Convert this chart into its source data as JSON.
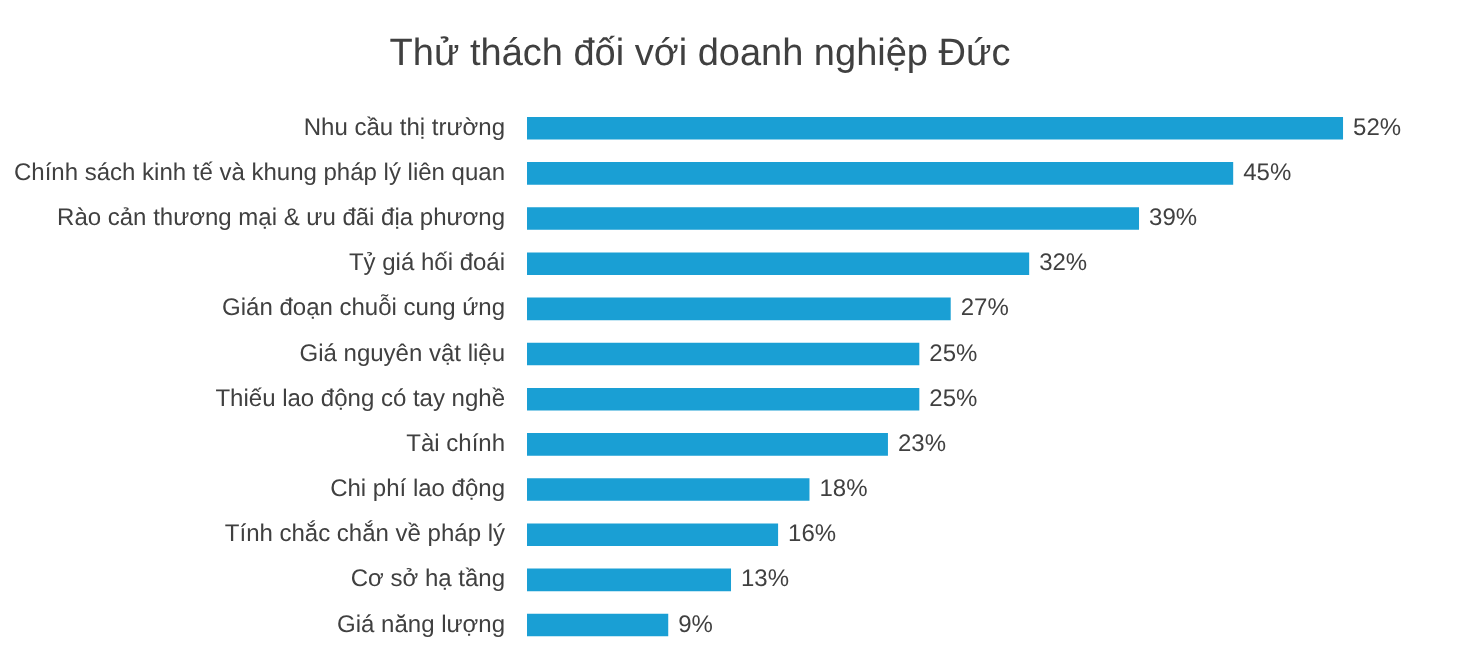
{
  "chart_data": {
    "type": "bar",
    "orientation": "horizontal",
    "title": "Thử thách đối với doanh nghiệp Đức",
    "categories": [
      "Nhu cầu thị trường",
      "Chính sách kinh tế và khung pháp lý liên quan",
      "Rào cản thương mại & ưu đãi địa phương",
      "Tỷ giá hối đoái",
      "Gián đoạn chuỗi cung ứng",
      "Giá nguyên vật liệu",
      "Thiếu lao động có tay nghề",
      "Tài chính",
      "Chi phí lao động",
      "Tính chắc chắn về pháp lý",
      "Cơ sở hạ tầng",
      "Giá năng lượng"
    ],
    "values": [
      52,
      45,
      39,
      32,
      27,
      25,
      25,
      23,
      18,
      16,
      13,
      9
    ],
    "value_labels": [
      "52%",
      "45%",
      "39%",
      "32%",
      "27%",
      "25%",
      "25%",
      "23%",
      "18%",
      "16%",
      "13%",
      "9%"
    ],
    "color": "#1a9fd4"
  }
}
